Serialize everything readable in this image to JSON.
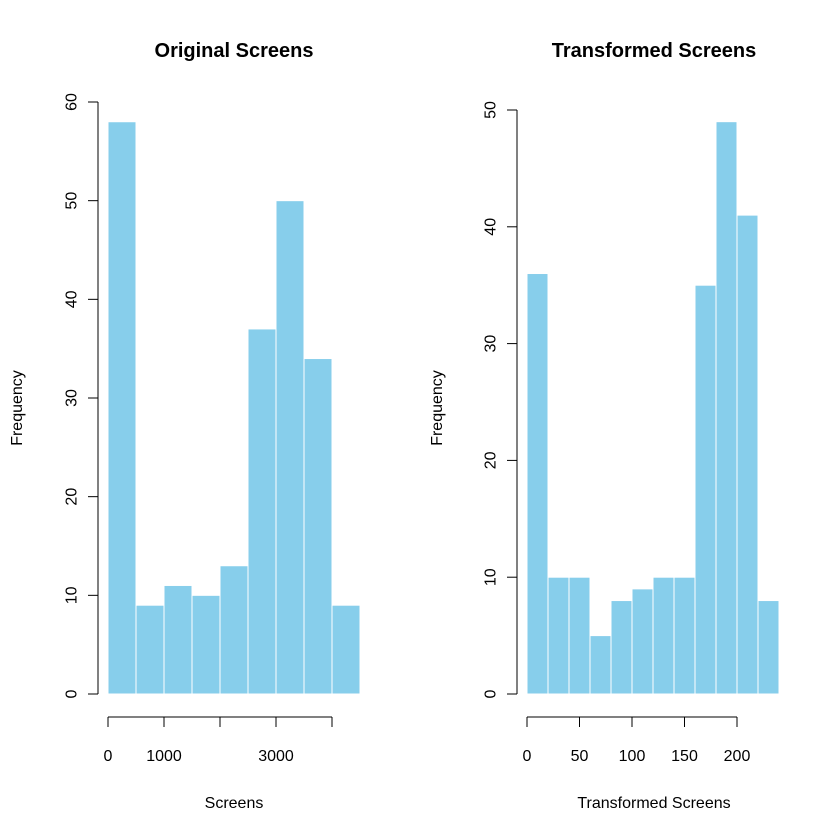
{
  "chart_data": [
    {
      "type": "bar",
      "title": "Original Screens",
      "xlabel": "Screens",
      "ylabel": "Frequency",
      "bar_color": "#87ceeb",
      "bin_edges": [
        0,
        500,
        1000,
        1500,
        2000,
        2500,
        3000,
        3500,
        4000,
        4500
      ],
      "values": [
        58,
        9,
        11,
        10,
        13,
        37,
        50,
        34,
        9
      ],
      "xlim": [
        0,
        4500
      ],
      "x_ticks": [
        0,
        1000,
        2000,
        3000,
        4000
      ],
      "x_tick_labels": [
        "0",
        "1000",
        "",
        "3000",
        ""
      ],
      "ylim": [
        0,
        60
      ],
      "y_ticks": [
        0,
        10,
        20,
        30,
        40,
        50,
        60
      ],
      "y_tick_labels": [
        "0",
        "10",
        "20",
        "30",
        "40",
        "50",
        "60"
      ],
      "grid": false,
      "legend": false
    },
    {
      "type": "bar",
      "title": "Transformed Screens",
      "xlabel": "Transformed Screens",
      "ylabel": "Frequency",
      "bar_color": "#87ceeb",
      "bin_edges": [
        0,
        20,
        40,
        60,
        80,
        100,
        120,
        140,
        160,
        180,
        200,
        220,
        240
      ],
      "values": [
        36,
        10,
        10,
        5,
        8,
        9,
        10,
        10,
        35,
        49,
        41,
        8
      ],
      "xlim": [
        0,
        240
      ],
      "x_ticks": [
        0,
        50,
        100,
        150,
        200
      ],
      "x_tick_labels": [
        "0",
        "50",
        "100",
        "150",
        "200"
      ],
      "ylim": [
        0,
        50
      ],
      "y_ticks": [
        0,
        10,
        20,
        30,
        40,
        50
      ],
      "y_tick_labels": [
        "0",
        "10",
        "20",
        "30",
        "40",
        "50"
      ],
      "grid": false,
      "legend": false
    }
  ]
}
